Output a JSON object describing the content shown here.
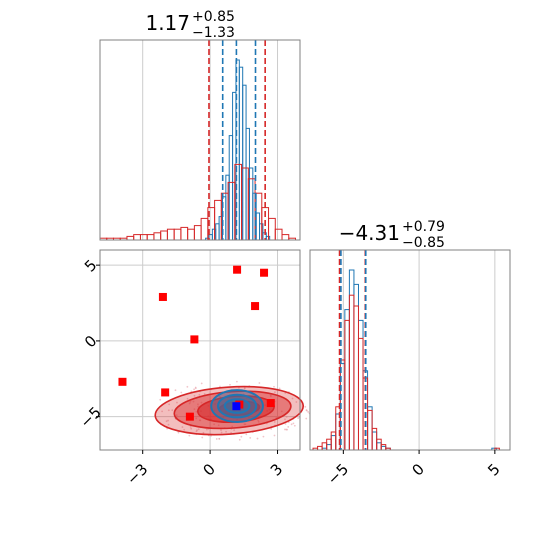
{
  "chart_data": [
    {
      "type": "histogram",
      "panel": "top-left",
      "title": {
        "value": "1.17",
        "plus": "+0.85",
        "minus": "−1.33"
      },
      "xlim": [
        -4.9,
        4.0
      ],
      "grid": true,
      "ticks_shown": false,
      "quantile_lines": {
        "blue": [
          0.56,
          1.17,
          2.02
        ],
        "red": [
          -0.05,
          2.45
        ]
      },
      "series": [
        {
          "name": "blue",
          "color": "#1f77b4",
          "bins": [
            [
              -0.2,
              1
            ],
            [
              -0.05,
              3
            ],
            [
              0.1,
              6
            ],
            [
              0.25,
              9
            ],
            [
              0.4,
              13
            ],
            [
              0.55,
              24
            ],
            [
              0.7,
              36
            ],
            [
              0.85,
              58
            ],
            [
              1.0,
              82
            ],
            [
              1.15,
              100
            ],
            [
              1.3,
              96
            ],
            [
              1.45,
              86
            ],
            [
              1.6,
              62
            ],
            [
              1.75,
              40
            ],
            [
              1.9,
              26
            ],
            [
              2.05,
              15
            ],
            [
              2.2,
              9
            ],
            [
              2.35,
              4
            ],
            [
              2.5,
              2
            ],
            [
              2.65,
              0
            ]
          ]
        },
        {
          "name": "red",
          "color": "#d62728",
          "bins": [
            [
              -4.9,
              1
            ],
            [
              -4.6,
              1
            ],
            [
              -4.3,
              1
            ],
            [
              -4.0,
              1
            ],
            [
              -3.7,
              2
            ],
            [
              -3.4,
              3
            ],
            [
              -3.1,
              3
            ],
            [
              -2.8,
              3
            ],
            [
              -2.5,
              4
            ],
            [
              -2.2,
              5
            ],
            [
              -1.9,
              6
            ],
            [
              -1.6,
              6
            ],
            [
              -1.3,
              7
            ],
            [
              -1.0,
              6
            ],
            [
              -0.7,
              8
            ],
            [
              -0.4,
              12
            ],
            [
              -0.1,
              18
            ],
            [
              0.2,
              22
            ],
            [
              0.5,
              26
            ],
            [
              0.8,
              32
            ],
            [
              1.1,
              42
            ],
            [
              1.4,
              40
            ],
            [
              1.7,
              34
            ],
            [
              2.0,
              26
            ],
            [
              2.3,
              18
            ],
            [
              2.6,
              12
            ],
            [
              2.9,
              6
            ],
            [
              3.2,
              3
            ],
            [
              3.5,
              1
            ]
          ]
        }
      ]
    },
    {
      "type": "scatter-contour",
      "panel": "bottom-left",
      "xlim": [
        -4.9,
        4.0
      ],
      "ylim": [
        -7.2,
        6.0
      ],
      "x_ticks": [
        "−3",
        "0",
        "3"
      ],
      "x_tick_values": [
        -3,
        0,
        3
      ],
      "y_ticks": [
        "−5",
        "0",
        "5"
      ],
      "y_tick_values": [
        -5,
        0,
        5
      ],
      "grid": true,
      "red_points": [
        [
          1.2,
          4.7
        ],
        [
          2.4,
          4.5
        ],
        [
          -2.1,
          2.9
        ],
        [
          2.0,
          2.3
        ],
        [
          -0.7,
          0.1
        ],
        [
          -3.9,
          -2.7
        ],
        [
          -2.0,
          -3.4
        ],
        [
          -0.9,
          -5.0
        ],
        [
          2.7,
          -4.1
        ],
        [
          1.3,
          -4.2
        ]
      ],
      "true_value": [
        1.17,
        -4.31
      ],
      "contours": {
        "red": {
          "color": "#d62728",
          "center": [
            0.85,
            -4.6
          ],
          "rx": [
            3.3,
            2.6,
            1.7,
            0.9
          ],
          "ry": [
            1.55,
            1.2,
            0.85,
            0.45
          ]
        },
        "blue": {
          "color": "#1f77b4",
          "center": [
            1.2,
            -4.3
          ],
          "rx": [
            1.15,
            0.85,
            0.55
          ],
          "ry": [
            1.05,
            0.75,
            0.45
          ]
        }
      }
    },
    {
      "type": "histogram",
      "panel": "bottom-right",
      "title": {
        "value": "−4.31",
        "plus": "+0.79",
        "minus": "−0.85"
      },
      "xlim": [
        -7.2,
        6.0
      ],
      "x_ticks": [
        "−5",
        "0",
        "5"
      ],
      "x_tick_values": [
        -5,
        0,
        5
      ],
      "grid": true,
      "quantile_lines": {
        "blue": [
          -5.16,
          -3.52
        ],
        "red": [
          -5.25,
          -3.55
        ]
      },
      "series": [
        {
          "name": "blue",
          "color": "#1f77b4",
          "bins": [
            [
              -6.4,
              1
            ],
            [
              -6.1,
              3
            ],
            [
              -5.8,
              8
            ],
            [
              -5.5,
              20
            ],
            [
              -5.2,
              48
            ],
            [
              -4.9,
              78
            ],
            [
              -4.6,
              100
            ],
            [
              -4.3,
              92
            ],
            [
              -4.0,
              72
            ],
            [
              -3.7,
              44
            ],
            [
              -3.4,
              24
            ],
            [
              -3.1,
              10
            ],
            [
              -2.8,
              4
            ],
            [
              -2.5,
              2
            ],
            [
              -2.2,
              1
            ],
            [
              -1.9,
              0
            ],
            [
              4.8,
              1
            ]
          ]
        },
        {
          "name": "red",
          "color": "#d62728",
          "bins": [
            [
              -7.0,
              1
            ],
            [
              -6.7,
              2
            ],
            [
              -6.4,
              4
            ],
            [
              -6.1,
              6
            ],
            [
              -5.8,
              10
            ],
            [
              -5.5,
              24
            ],
            [
              -5.2,
              50
            ],
            [
              -4.9,
              72
            ],
            [
              -4.6,
              86
            ],
            [
              -4.3,
              80
            ],
            [
              -4.0,
              62
            ],
            [
              -3.7,
              40
            ],
            [
              -3.4,
              22
            ],
            [
              -3.1,
              12
            ],
            [
              -2.8,
              6
            ],
            [
              -2.5,
              3
            ],
            [
              -2.2,
              1
            ],
            [
              -1.9,
              0
            ],
            [
              5.0,
              1
            ]
          ]
        }
      ]
    }
  ]
}
